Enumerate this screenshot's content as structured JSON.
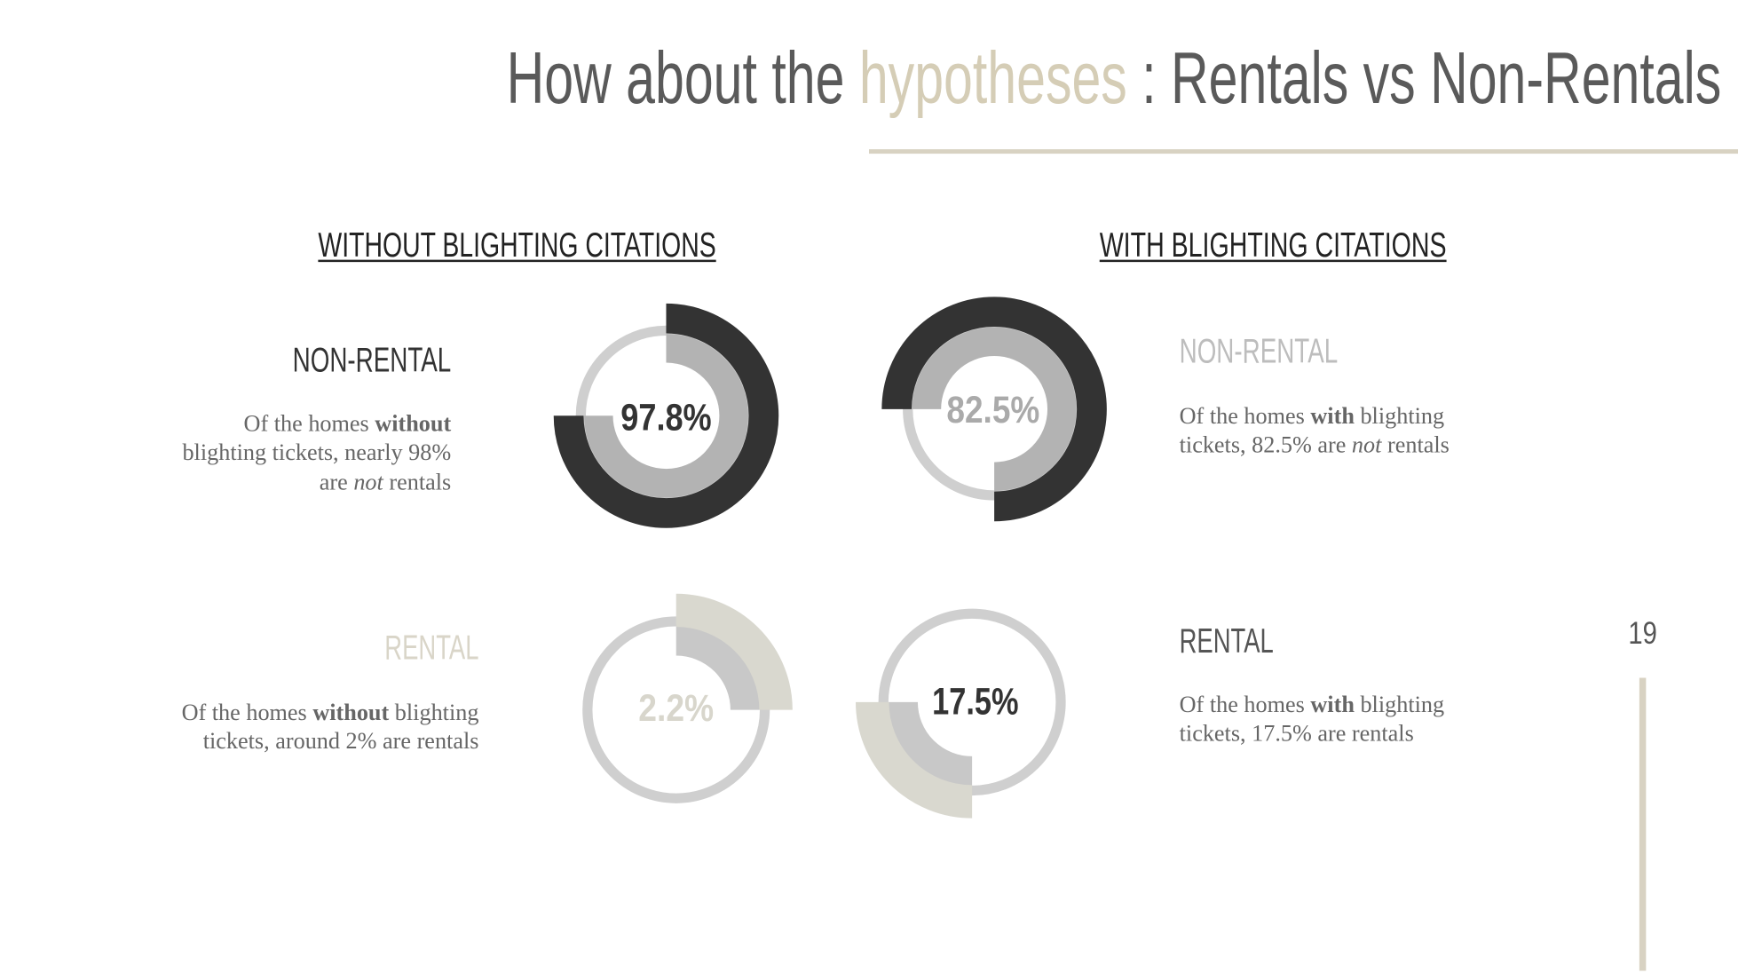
{
  "title": {
    "lead": "How about the",
    "highlight": "hypotheses",
    "rest": ": Rentals vs Non-Rentals"
  },
  "page_number": "19",
  "sections": [
    {
      "heading": "WITHOUT BLIGHTING CITATIONS",
      "groups": [
        {
          "label": "NON-RENTAL",
          "percent": "97.8%",
          "description": [
            [
              "Of the homes ",
              "without"
            ],
            [
              "blighting tickets, nearly 98%"
            ],
            [
              "are ",
              "not",
              " rentals"
            ]
          ]
        },
        {
          "label": "RENTAL",
          "percent": "2.2%",
          "description": [
            [
              "Of the homes ",
              "without",
              " blighting"
            ],
            [
              "tickets, around 2% are rentals"
            ]
          ]
        }
      ]
    },
    {
      "heading": "WITH BLIGHTING CITATIONS",
      "groups": [
        {
          "label": "NON-RENTAL",
          "percent": "82.5%",
          "description": [
            [
              "Of the homes ",
              "with",
              " blighting"
            ],
            [
              "tickets, 82.5% are ",
              "not",
              " rentals"
            ]
          ]
        },
        {
          "label": "RENTAL",
          "percent": "17.5%",
          "description": [
            [
              "Of the homes ",
              "with",
              " blighting"
            ],
            [
              "tickets, 17.5% are rentals"
            ]
          ]
        }
      ]
    }
  ]
}
